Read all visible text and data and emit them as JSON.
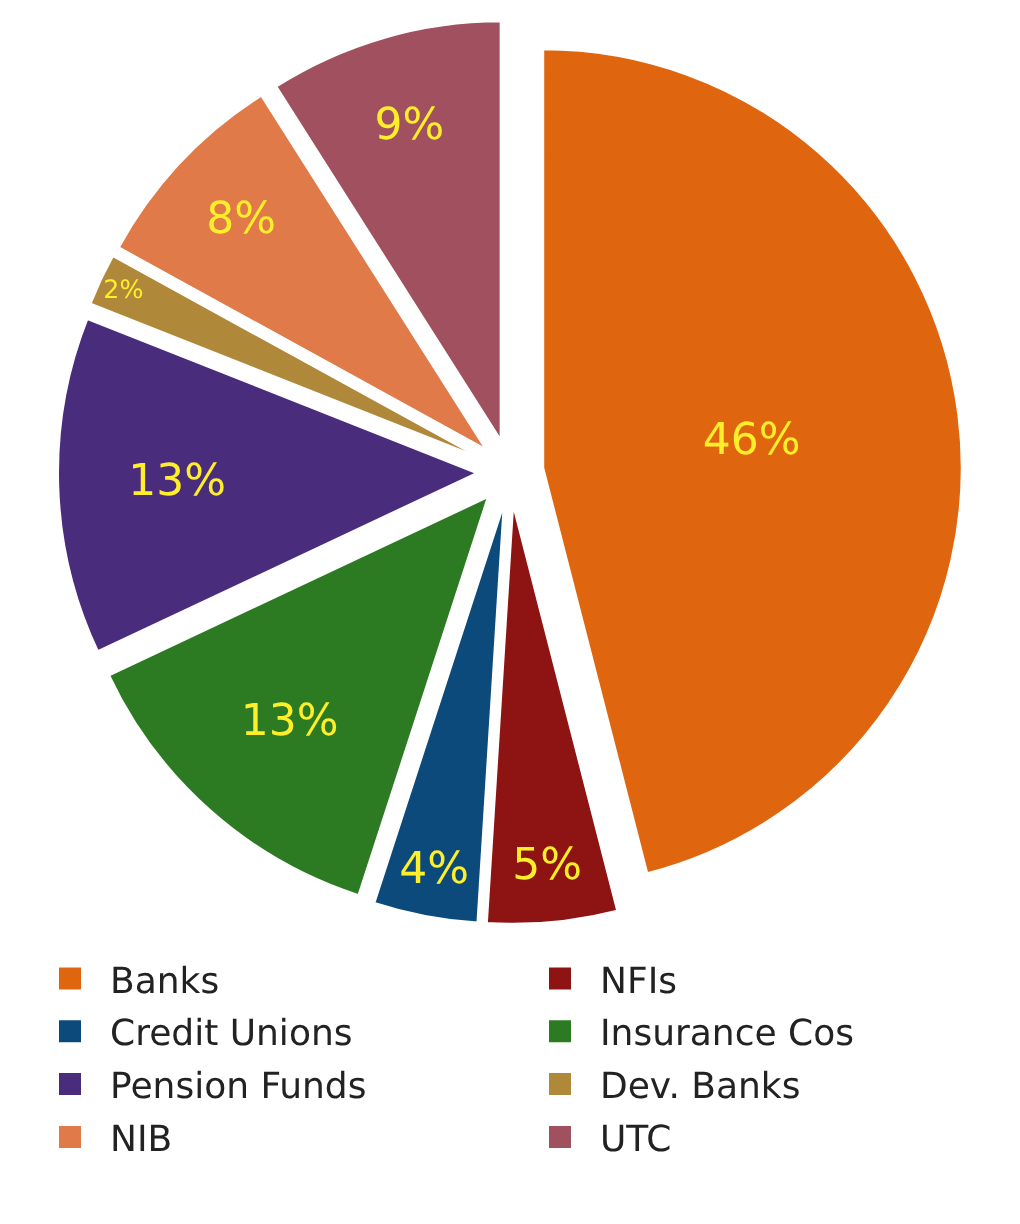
{
  "chart_data": {
    "type": "pie",
    "categories": [
      "Banks",
      "NFIs",
      "Credit Unions",
      "Insurance Cos",
      "Pension Funds",
      "Dev. Banks",
      "NIB",
      "UTC"
    ],
    "values": [
      46,
      5,
      4,
      13,
      13,
      2,
      8,
      9
    ],
    "value_labels": [
      "46%",
      "5%",
      "4%",
      "13%",
      "13%",
      "2%",
      "8%",
      "9%"
    ],
    "colors": [
      "#e0650f",
      "#8e1414",
      "#0c4a7c",
      "#2c7a22",
      "#4a2c7c",
      "#b0883a",
      "#e07a48",
      "#a0505e"
    ],
    "legend": "bottom"
  }
}
